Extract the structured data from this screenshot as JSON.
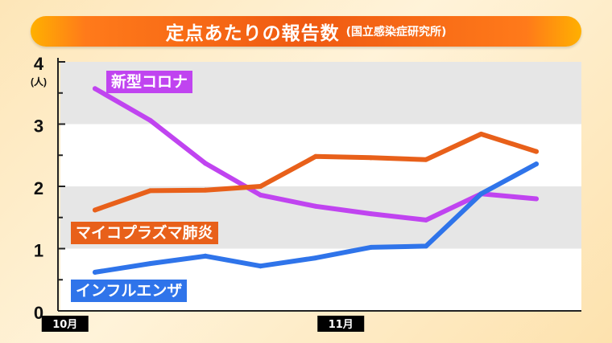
{
  "title": {
    "main": "定点あたりの報告数",
    "sub": "(国立感染症研究所)"
  },
  "chart_data": {
    "type": "line",
    "title": "定点あたりの報告数",
    "subtitle": "(国立感染症研究所)",
    "ylabel": "(人)",
    "ylim": [
      0,
      4
    ],
    "yticks": [
      "0",
      "1",
      "2",
      "3",
      "4"
    ],
    "x": [
      1,
      2,
      3,
      4,
      5,
      6,
      7,
      8,
      9
    ],
    "xtick_labels": [
      {
        "x": 0,
        "label": "10月"
      },
      {
        "x": 5,
        "label": "11月"
      }
    ],
    "grid": "alternating-bands",
    "series": [
      {
        "name": "新型コロナ",
        "color": "#c044f0",
        "values": [
          3.57,
          3.06,
          2.37,
          1.86,
          1.68,
          1.56,
          1.46,
          1.88,
          1.8
        ]
      },
      {
        "name": "マイコプラズマ肺炎",
        "color": "#e8601a",
        "values": [
          1.62,
          1.93,
          1.94,
          2.0,
          2.48,
          2.46,
          2.43,
          2.84,
          2.56
        ]
      },
      {
        "name": "インフルエンザ",
        "color": "#2f74ea",
        "values": [
          0.62,
          0.76,
          0.88,
          0.72,
          0.85,
          1.02,
          1.04,
          1.88,
          2.36
        ]
      }
    ]
  }
}
